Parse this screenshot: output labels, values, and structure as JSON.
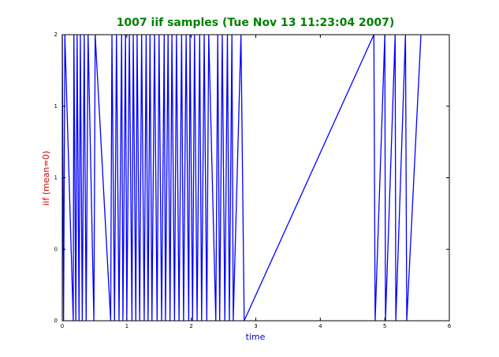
{
  "chart_data": {
    "type": "line",
    "title": "1007 iif samples (Tue Nov 13 11:23:04 2007)",
    "xlabel": "time",
    "ylabel": "iif (mean=0)",
    "x": [
      0,
      0.02,
      0.04,
      0.17,
      0.18,
      0.21,
      0.23,
      0.26,
      0.28,
      0.31,
      0.34,
      0.37,
      0.4,
      0.49,
      0.51,
      0.75,
      0.77,
      0.81,
      0.84,
      0.88,
      0.92,
      0.94,
      0.98,
      1.0,
      1.04,
      1.08,
      1.1,
      1.14,
      1.16,
      1.2,
      1.23,
      1.27,
      1.3,
      1.33,
      1.36,
      1.39,
      1.43,
      1.47,
      1.5,
      1.54,
      1.58,
      1.6,
      1.64,
      1.67,
      1.7,
      1.74,
      1.77,
      1.81,
      1.85,
      1.88,
      1.92,
      1.96,
      1.98,
      2.02,
      2.05,
      2.09,
      2.13,
      2.16,
      2.2,
      2.24,
      2.27,
      2.38,
      2.41,
      2.44,
      2.48,
      2.52,
      2.56,
      2.59,
      2.63,
      2.65,
      2.77,
      2.82,
      4.83,
      4.85,
      5.0,
      5.01,
      5.16,
      5.17,
      5.32,
      5.34,
      5.56
    ],
    "series": [
      {
        "name": "iif",
        "color": "#0000ff",
        "values": [
          2,
          0,
          2,
          0,
          2,
          0,
          2,
          0,
          2,
          0,
          2,
          0,
          2,
          0,
          2,
          0,
          2,
          0,
          2,
          0,
          2,
          0,
          2,
          0,
          2,
          0,
          2,
          0,
          2,
          0,
          2,
          0,
          2,
          0,
          2,
          0,
          2,
          0,
          2,
          0,
          2,
          0,
          2,
          0,
          2,
          0,
          2,
          0,
          2,
          0,
          2,
          0,
          2,
          0,
          2,
          0,
          2,
          0,
          2,
          0,
          2,
          0,
          2,
          0,
          2,
          0,
          2,
          0,
          2,
          0,
          2,
          0,
          2,
          0,
          2,
          0,
          2,
          0,
          2,
          0,
          2
        ]
      }
    ],
    "xlim": [
      0,
      6
    ],
    "xticks": [
      0,
      1,
      2,
      3,
      4,
      5,
      6
    ],
    "ylim": [
      0,
      2
    ],
    "yticks": [
      0,
      {
        "value": 0.5,
        "label": "0"
      },
      1,
      {
        "value": 1.5,
        "label": "1"
      },
      2
    ],
    "title_color": "#008000",
    "xlabel_color": "#0000cc",
    "ylabel_color": "#cc0000",
    "grid": false
  }
}
